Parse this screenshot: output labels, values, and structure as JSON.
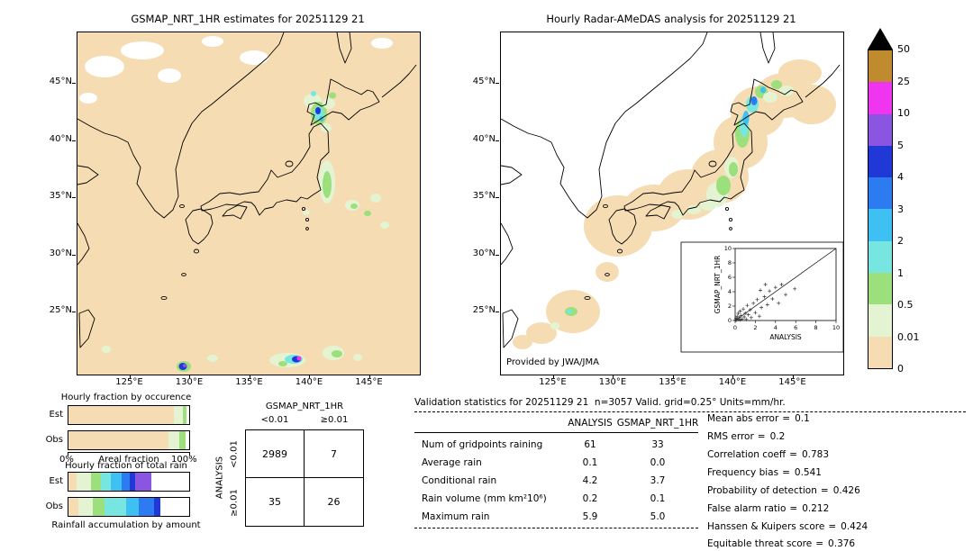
{
  "left_map": {
    "title": "GSMAP_NRT_1HR estimates for 20251129 21",
    "x_ticks": [
      "125°E",
      "130°E",
      "135°E",
      "140°E",
      "145°E"
    ],
    "y_ticks": [
      "45°N",
      "40°N",
      "35°N",
      "30°N",
      "25°N"
    ]
  },
  "right_map": {
    "title": "Hourly Radar-AMeDAS analysis for 20251129 21",
    "x_ticks": [
      "125°E",
      "130°E",
      "135°E",
      "140°E",
      "145°E"
    ],
    "y_ticks": [
      "45°N",
      "40°N",
      "35°N",
      "30°N",
      "25°N"
    ],
    "credit": "Provided by JWA/JMA",
    "inset": {
      "ylabel": "GSMAP_NRT_1HR",
      "xlabel": "ANALYSIS",
      "x_ticks": [
        "0",
        "2",
        "4",
        "6",
        "8",
        "10"
      ],
      "y_ticks": [
        "0",
        "2",
        "4",
        "6",
        "8",
        "10"
      ]
    }
  },
  "colorbar": {
    "boundary_labels": [
      "0",
      "0.01",
      "0.5",
      "1",
      "2",
      "3",
      "4",
      "5",
      "10",
      "25",
      "50"
    ],
    "cells_bottom_to_top": [
      {
        "range": "0-0.01",
        "color": "#f5dcb2"
      },
      {
        "range": "0.01-0.5",
        "color": "#e4f4d2"
      },
      {
        "range": "0.5-1",
        "color": "#9ce07e"
      },
      {
        "range": "1-2",
        "color": "#77e6e0"
      },
      {
        "range": "2-3",
        "color": "#3fc0f2"
      },
      {
        "range": "3-4",
        "color": "#2d7bf0"
      },
      {
        "range": "4-5",
        "color": "#2038d6"
      },
      {
        "range": "5-10",
        "color": "#8a55e0"
      },
      {
        "range": "10-25",
        "color": "#ef35ef"
      },
      {
        "range": "25-50",
        "color": "#bf8b2e"
      }
    ],
    "overflow_color": "#000000",
    "units": "mm/hr"
  },
  "occurrence_chart": {
    "title": "Hourly fraction by occurence",
    "row_labels": [
      "Est",
      "Obs"
    ],
    "x_min": "0%",
    "x_max": "100%",
    "xlabel": "Areal fraction"
  },
  "totalrain_chart": {
    "title": "Hourly fraction of total rain",
    "row_labels": [
      "Est",
      "Obs"
    ],
    "caption": "Rainfall accumulation by amount"
  },
  "contingency": {
    "col_group": "GSMAP_NRT_1HR",
    "row_group": "ANALYSIS",
    "col_labels": [
      "<0.01",
      "≥0.01"
    ],
    "row_labels": [
      "<0.01",
      "≥0.01"
    ],
    "values": [
      [
        "2989",
        "7"
      ],
      [
        "35",
        "26"
      ]
    ]
  },
  "stats": {
    "header": "Validation statistics for 20251129 21  n=3057 Valid. grid=0.25° Units=mm/hr.",
    "columns": [
      "ANALYSIS",
      "GSMAP_NRT_1HR"
    ],
    "rows": [
      {
        "label": "Num of gridpoints raining",
        "analysis": "61",
        "gsmap": "33"
      },
      {
        "label": "Average rain",
        "analysis": "0.1",
        "gsmap": "0.0"
      },
      {
        "label": "Conditional rain",
        "analysis": "4.2",
        "gsmap": "3.7"
      },
      {
        "label": "Rain volume (mm km²10⁶)",
        "analysis": "0.2",
        "gsmap": "0.1"
      },
      {
        "label": "Maximum rain",
        "analysis": "5.9",
        "gsmap": "5.0"
      }
    ],
    "metrics_sep": "=",
    "metrics": [
      {
        "label": "Mean abs error",
        "value": "0.1"
      },
      {
        "label": "RMS error",
        "value": "0.2"
      },
      {
        "label": "Correlation coeff",
        "value": "0.783"
      },
      {
        "label": "Frequency bias",
        "value": "0.541"
      },
      {
        "label": "Probability of detection",
        "value": "0.426"
      },
      {
        "label": "False alarm ratio",
        "value": "0.212"
      },
      {
        "label": "Hanssen & Kuipers score",
        "value": "0.424"
      },
      {
        "label": "Equitable threat score",
        "value": "0.376"
      }
    ]
  },
  "chart_data": [
    {
      "type": "bar",
      "id": "occurrence",
      "title": "Hourly fraction by occurence",
      "orientation": "horizontal-stacked",
      "xlabel": "Areal fraction",
      "xlim": [
        0,
        100
      ],
      "unit": "percent",
      "categories": [
        "Est",
        "Obs"
      ],
      "series": [
        {
          "name": "Est",
          "segments": [
            {
              "band": "<0.01",
              "color": "#f5dcb2",
              "pct": 87
            },
            {
              "band": "0.01-0.5",
              "color": "#e4f4d2",
              "pct": 8
            },
            {
              "band": "0.5-1",
              "color": "#9ce07e",
              "pct": 3
            },
            {
              "band": "none",
              "color": "#ffffff",
              "pct": 2
            }
          ]
        },
        {
          "name": "Obs",
          "segments": [
            {
              "band": "<0.01",
              "color": "#f5dcb2",
              "pct": 83
            },
            {
              "band": "0.01-0.5",
              "color": "#e4f4d2",
              "pct": 9
            },
            {
              "band": "0.5-1",
              "color": "#9ce07e",
              "pct": 5
            },
            {
              "band": "none",
              "color": "#ffffff",
              "pct": 3
            }
          ]
        }
      ]
    },
    {
      "type": "bar",
      "id": "totalrain",
      "title": "Hourly fraction of total rain",
      "orientation": "horizontal-stacked",
      "xlim": [
        0,
        100
      ],
      "unit": "percent",
      "categories": [
        "Est",
        "Obs"
      ],
      "series": [
        {
          "name": "Est",
          "segments": [
            {
              "band": "<0.01",
              "color": "#f5dcb2",
              "pct": 7
            },
            {
              "band": "0.01-0.5",
              "color": "#e4f4d2",
              "pct": 12
            },
            {
              "band": "0.5-1",
              "color": "#9ce07e",
              "pct": 8
            },
            {
              "band": "1-2",
              "color": "#77e6e0",
              "pct": 8
            },
            {
              "band": "2-3",
              "color": "#3fc0f2",
              "pct": 9
            },
            {
              "band": "3-4",
              "color": "#2d7bf0",
              "pct": 7
            },
            {
              "band": "4-5",
              "color": "#2038d6",
              "pct": 4
            },
            {
              "band": "5-10",
              "color": "#8a55e0",
              "pct": 14
            },
            {
              "band": "none",
              "color": "#ffffff",
              "pct": 31
            }
          ]
        },
        {
          "name": "Obs",
          "segments": [
            {
              "band": "<0.01",
              "color": "#f5dcb2",
              "pct": 8
            },
            {
              "band": "0.01-0.5",
              "color": "#e4f4d2",
              "pct": 12
            },
            {
              "band": "0.5-1",
              "color": "#9ce07e",
              "pct": 10
            },
            {
              "band": "1-2",
              "color": "#77e6e0",
              "pct": 18
            },
            {
              "band": "2-3",
              "color": "#3fc0f2",
              "pct": 10
            },
            {
              "band": "3-4",
              "color": "#2d7bf0",
              "pct": 13
            },
            {
              "band": "4-5",
              "color": "#2038d6",
              "pct": 5
            },
            {
              "band": "none",
              "color": "#ffffff",
              "pct": 24
            }
          ]
        }
      ]
    },
    {
      "type": "scatter",
      "id": "inset-scatter",
      "xlabel": "ANALYSIS",
      "ylabel": "GSMAP_NRT_1HR",
      "xlim": [
        0,
        10
      ],
      "ylim": [
        0,
        10
      ],
      "marker": "+",
      "diagonal": true,
      "points": [
        [
          0.05,
          0.1
        ],
        [
          0.1,
          0.3
        ],
        [
          0.15,
          0.05
        ],
        [
          0.2,
          0.6
        ],
        [
          0.3,
          0.15
        ],
        [
          0.3,
          1.0
        ],
        [
          0.4,
          0.4
        ],
        [
          0.5,
          0.1
        ],
        [
          0.5,
          1.3
        ],
        [
          0.6,
          0.7
        ],
        [
          0.7,
          0.2
        ],
        [
          0.8,
          1.6
        ],
        [
          0.9,
          0.5
        ],
        [
          1.0,
          1.0
        ],
        [
          1.1,
          0.15
        ],
        [
          1.2,
          2.1
        ],
        [
          1.3,
          0.8
        ],
        [
          1.5,
          1.5
        ],
        [
          1.6,
          0.4
        ],
        [
          1.8,
          2.4
        ],
        [
          2.0,
          1.1
        ],
        [
          2.2,
          2.9
        ],
        [
          2.4,
          0.6
        ],
        [
          2.6,
          1.8
        ],
        [
          2.9,
          3.3
        ],
        [
          3.0,
          5.0
        ],
        [
          3.2,
          2.2
        ],
        [
          3.4,
          4.1
        ],
        [
          3.7,
          3.0
        ],
        [
          4.0,
          4.6
        ],
        [
          4.3,
          2.4
        ],
        [
          4.6,
          5.0
        ],
        [
          5.0,
          3.6
        ],
        [
          2.5,
          4.2
        ],
        [
          5.9,
          4.4
        ]
      ]
    },
    {
      "type": "table",
      "id": "contingency-table",
      "title": "Contingency table ANALYSIS vs GSMAP_NRT_1HR (threshold 0.01 mm/hr)",
      "columns": [
        "<0.01",
        "≥0.01"
      ],
      "rows": [
        "<0.01",
        "≥0.01"
      ],
      "values": [
        [
          2989,
          7
        ],
        [
          35,
          26
        ]
      ]
    },
    {
      "type": "table",
      "id": "validation-statistics",
      "title": "Validation statistics for 20251129 21",
      "n": 3057,
      "grid": "0.25°",
      "units": "mm/hr",
      "columns": [
        "ANALYSIS",
        "GSMAP_NRT_1HR"
      ],
      "values": [
        [
          "Num of gridpoints raining",
          61,
          33
        ],
        [
          "Average rain",
          0.1,
          0.0
        ],
        [
          "Conditional rain",
          4.2,
          3.7
        ],
        [
          "Rain volume (mm km²10⁶)",
          0.2,
          0.1
        ],
        [
          "Maximum rain",
          5.9,
          5.0
        ]
      ],
      "scores": {
        "Mean abs error": 0.1,
        "RMS error": 0.2,
        "Correlation coeff": 0.783,
        "Frequency bias": 0.541,
        "Probability of detection": 0.426,
        "False alarm ratio": 0.212,
        "Hanssen & Kuipers score": 0.424,
        "Equitable threat score": 0.376
      }
    }
  ]
}
